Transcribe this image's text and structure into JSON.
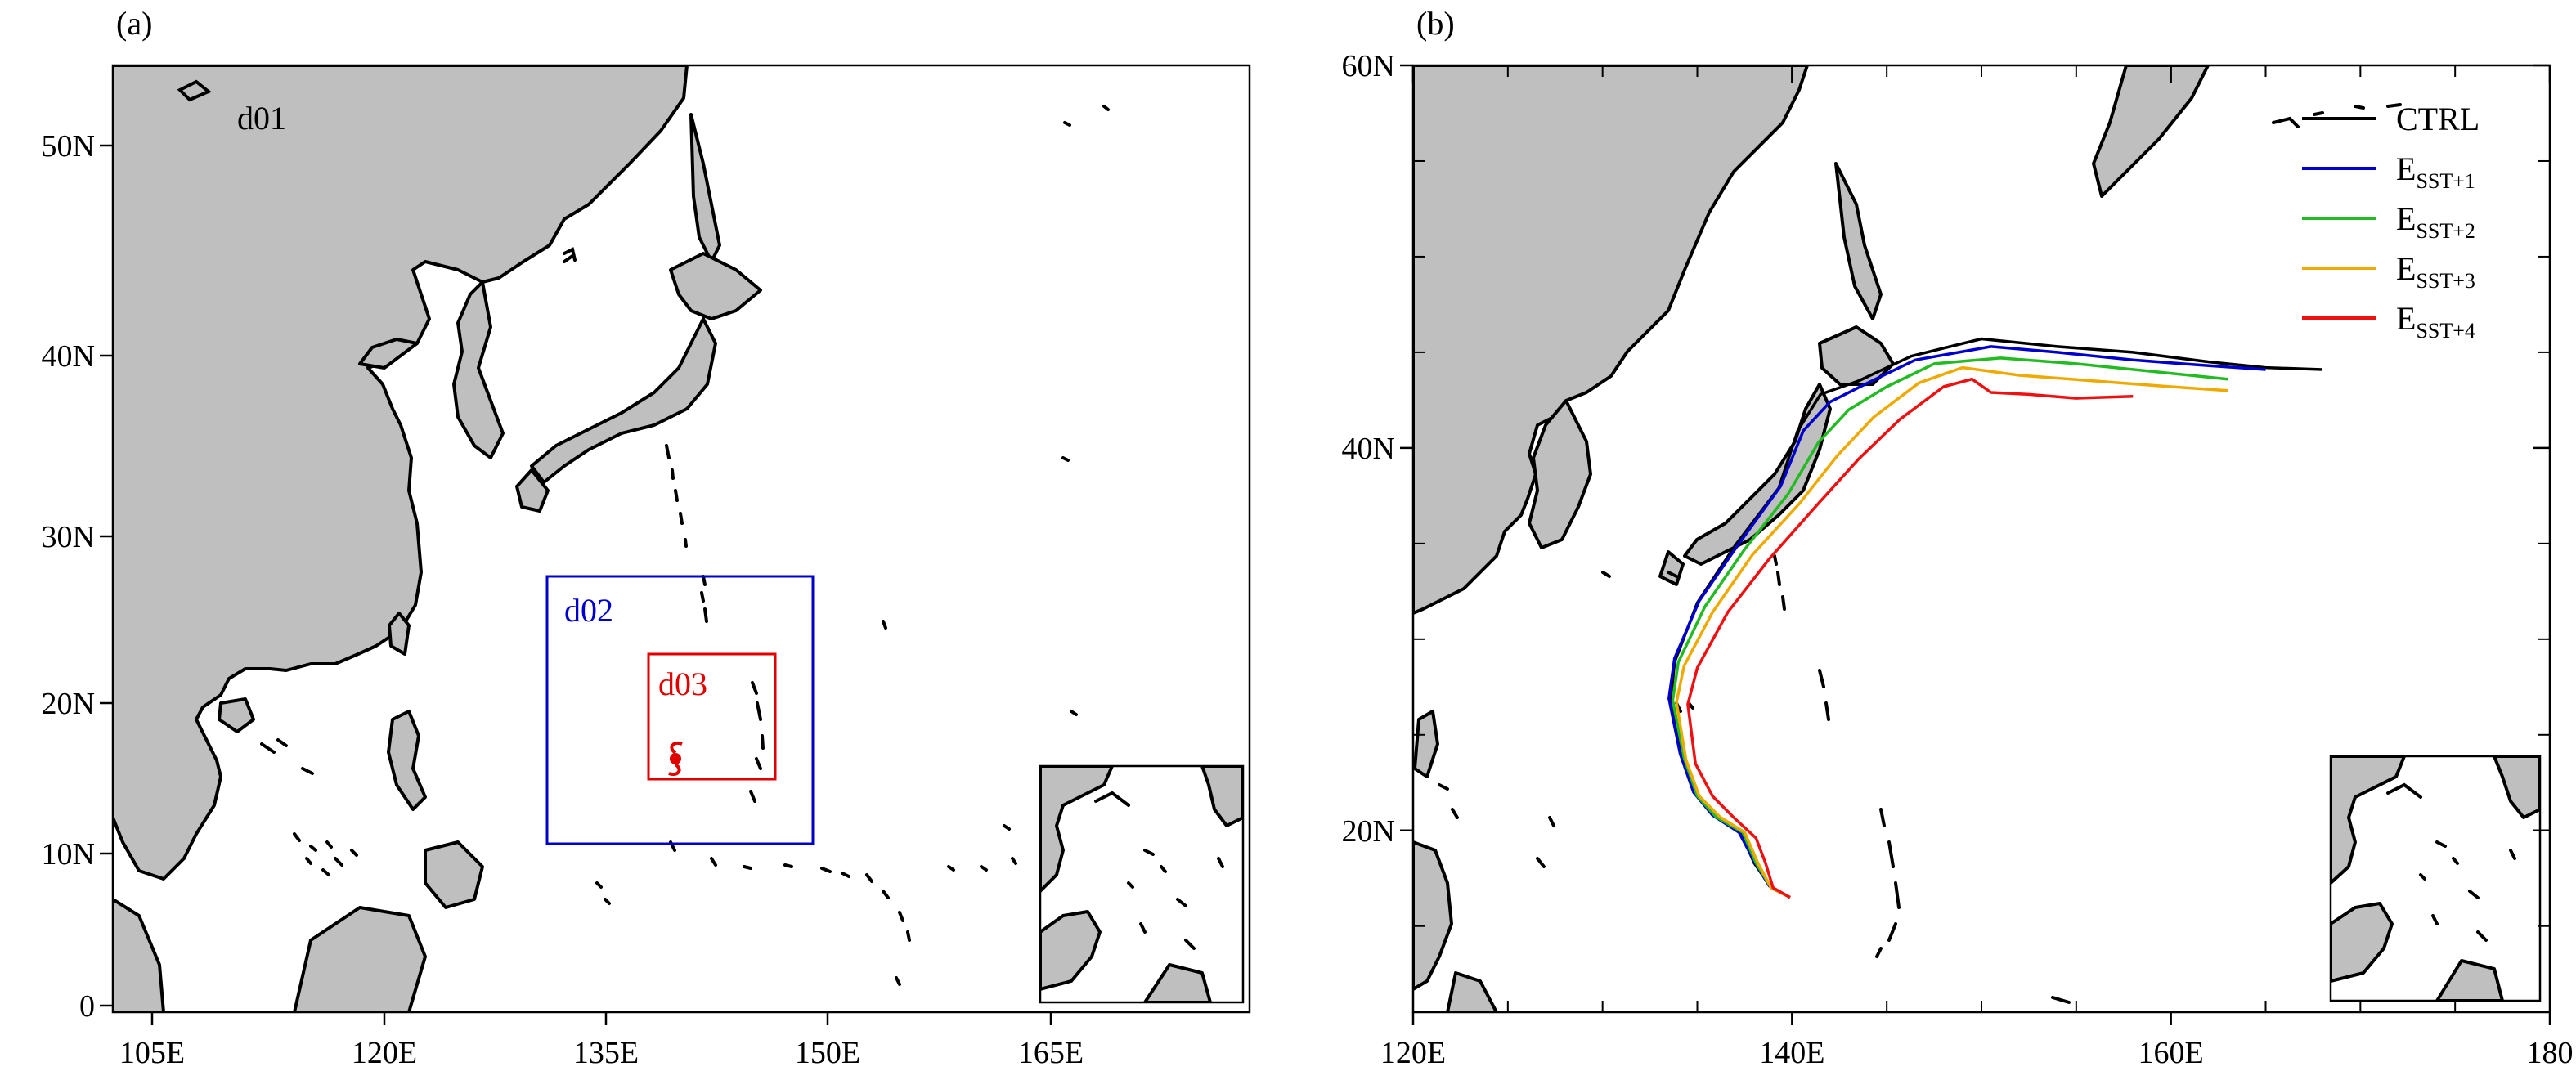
{
  "panel_a": {
    "label": "(a)",
    "x_ticks": [
      "105E",
      "120E",
      "135E",
      "150E",
      "165E"
    ],
    "y_ticks": [
      "0",
      "10N",
      "20N",
      "30N",
      "40N",
      "50N"
    ],
    "domains": {
      "d01": {
        "label": "d01",
        "color": "#000000"
      },
      "d02": {
        "label": "d02",
        "color": "#0000cc"
      },
      "d03": {
        "label": "d03",
        "color": "#e00000"
      }
    },
    "typhoon_symbol": {
      "name": "typhoon-icon",
      "color": "#e00000"
    }
  },
  "panel_b": {
    "label": "(b)",
    "x_ticks": [
      "120E",
      "140E",
      "160E",
      "180"
    ],
    "y_ticks": [
      "20N",
      "40N",
      "60N"
    ],
    "legend": [
      {
        "name": "CTRL",
        "sub": "",
        "color": "#000000"
      },
      {
        "name": "E",
        "sub": "SST+1",
        "color": "#0000cc"
      },
      {
        "name": "E",
        "sub": "SST+2",
        "color": "#22bb22"
      },
      {
        "name": "E",
        "sub": "SST+3",
        "color": "#eeaa00"
      },
      {
        "name": "E",
        "sub": "SST+4",
        "color": "#ee1111"
      }
    ]
  },
  "colors": {
    "land": "#bfbfbf",
    "coastline": "#000000"
  },
  "chart_data": {
    "type": "map",
    "tracks": [
      {
        "name": "CTRL",
        "points": [
          [
            139.9,
            16.5
          ],
          [
            138.9,
            17.0
          ],
          [
            138.0,
            18.3
          ],
          [
            137.3,
            19.9
          ],
          [
            135.9,
            20.8
          ],
          [
            134.9,
            21.9
          ],
          [
            134.2,
            23.9
          ],
          [
            133.6,
            26.8
          ],
          [
            133.8,
            28.8
          ],
          [
            135.0,
            31.9
          ],
          [
            137.0,
            34.9
          ],
          [
            139.3,
            37.9
          ],
          [
            140.3,
            40.9
          ],
          [
            141.5,
            42.8
          ],
          [
            143.5,
            43.5
          ],
          [
            146.3,
            44.8
          ],
          [
            150.0,
            45.7
          ],
          [
            154.0,
            45.3
          ],
          [
            158.0,
            45.0
          ],
          [
            162.0,
            44.5
          ],
          [
            165.0,
            44.2
          ],
          [
            168.0,
            44.1
          ]
        ]
      },
      {
        "name": "E_SST+1",
        "points": [
          [
            139.9,
            16.5
          ],
          [
            138.8,
            17.1
          ],
          [
            138.0,
            18.4
          ],
          [
            137.2,
            19.9
          ],
          [
            135.8,
            20.8
          ],
          [
            134.8,
            22.0
          ],
          [
            134.1,
            24.0
          ],
          [
            133.5,
            26.9
          ],
          [
            133.8,
            29.0
          ],
          [
            135.1,
            32.0
          ],
          [
            137.2,
            35.0
          ],
          [
            139.4,
            38.0
          ],
          [
            140.6,
            40.9
          ],
          [
            142.0,
            42.4
          ],
          [
            144.0,
            43.4
          ],
          [
            146.5,
            44.6
          ],
          [
            150.5,
            45.3
          ],
          [
            154.0,
            45.0
          ],
          [
            158.0,
            44.6
          ],
          [
            162.0,
            44.3
          ],
          [
            165.0,
            44.1
          ]
        ]
      },
      {
        "name": "E_SST+2",
        "points": [
          [
            139.9,
            16.5
          ],
          [
            138.9,
            17.0
          ],
          [
            138.1,
            18.3
          ],
          [
            137.4,
            19.9
          ],
          [
            136.0,
            20.7
          ],
          [
            135.0,
            21.8
          ],
          [
            134.3,
            23.8
          ],
          [
            133.7,
            26.8
          ],
          [
            134.0,
            28.8
          ],
          [
            135.4,
            31.7
          ],
          [
            137.5,
            34.7
          ],
          [
            139.8,
            37.6
          ],
          [
            141.4,
            40.3
          ],
          [
            143.0,
            42.0
          ],
          [
            145.0,
            43.2
          ],
          [
            147.5,
            44.4
          ],
          [
            151.0,
            44.7
          ],
          [
            155.0,
            44.4
          ],
          [
            159.0,
            44.0
          ],
          [
            163.0,
            43.6
          ]
        ]
      },
      {
        "name": "E_SST+3",
        "points": [
          [
            139.9,
            16.5
          ],
          [
            138.9,
            17.0
          ],
          [
            138.2,
            18.3
          ],
          [
            137.5,
            19.9
          ],
          [
            136.2,
            20.7
          ],
          [
            135.1,
            21.8
          ],
          [
            134.4,
            23.7
          ],
          [
            133.9,
            26.7
          ],
          [
            134.3,
            28.6
          ],
          [
            135.8,
            31.4
          ],
          [
            137.9,
            34.4
          ],
          [
            140.4,
            37.1
          ],
          [
            142.4,
            39.6
          ],
          [
            144.3,
            41.6
          ],
          [
            146.7,
            43.4
          ],
          [
            149.0,
            44.2
          ],
          [
            152.0,
            43.8
          ],
          [
            156.0,
            43.5
          ],
          [
            160.0,
            43.2
          ],
          [
            163.0,
            43.0
          ]
        ]
      },
      {
        "name": "E_SST+4",
        "points": [
          [
            139.9,
            16.5
          ],
          [
            139.0,
            17.0
          ],
          [
            138.6,
            18.3
          ],
          [
            138.1,
            19.6
          ],
          [
            136.9,
            20.7
          ],
          [
            135.8,
            21.8
          ],
          [
            134.9,
            23.5
          ],
          [
            134.5,
            26.6
          ],
          [
            135.0,
            28.5
          ],
          [
            136.6,
            31.4
          ],
          [
            138.8,
            34.2
          ],
          [
            141.3,
            37.0
          ],
          [
            143.5,
            39.4
          ],
          [
            145.7,
            41.5
          ],
          [
            148.0,
            43.2
          ],
          [
            149.5,
            43.6
          ],
          [
            150.5,
            42.9
          ],
          [
            152.5,
            42.8
          ],
          [
            155.0,
            42.6
          ],
          [
            158.0,
            42.7
          ]
        ]
      }
    ]
  }
}
